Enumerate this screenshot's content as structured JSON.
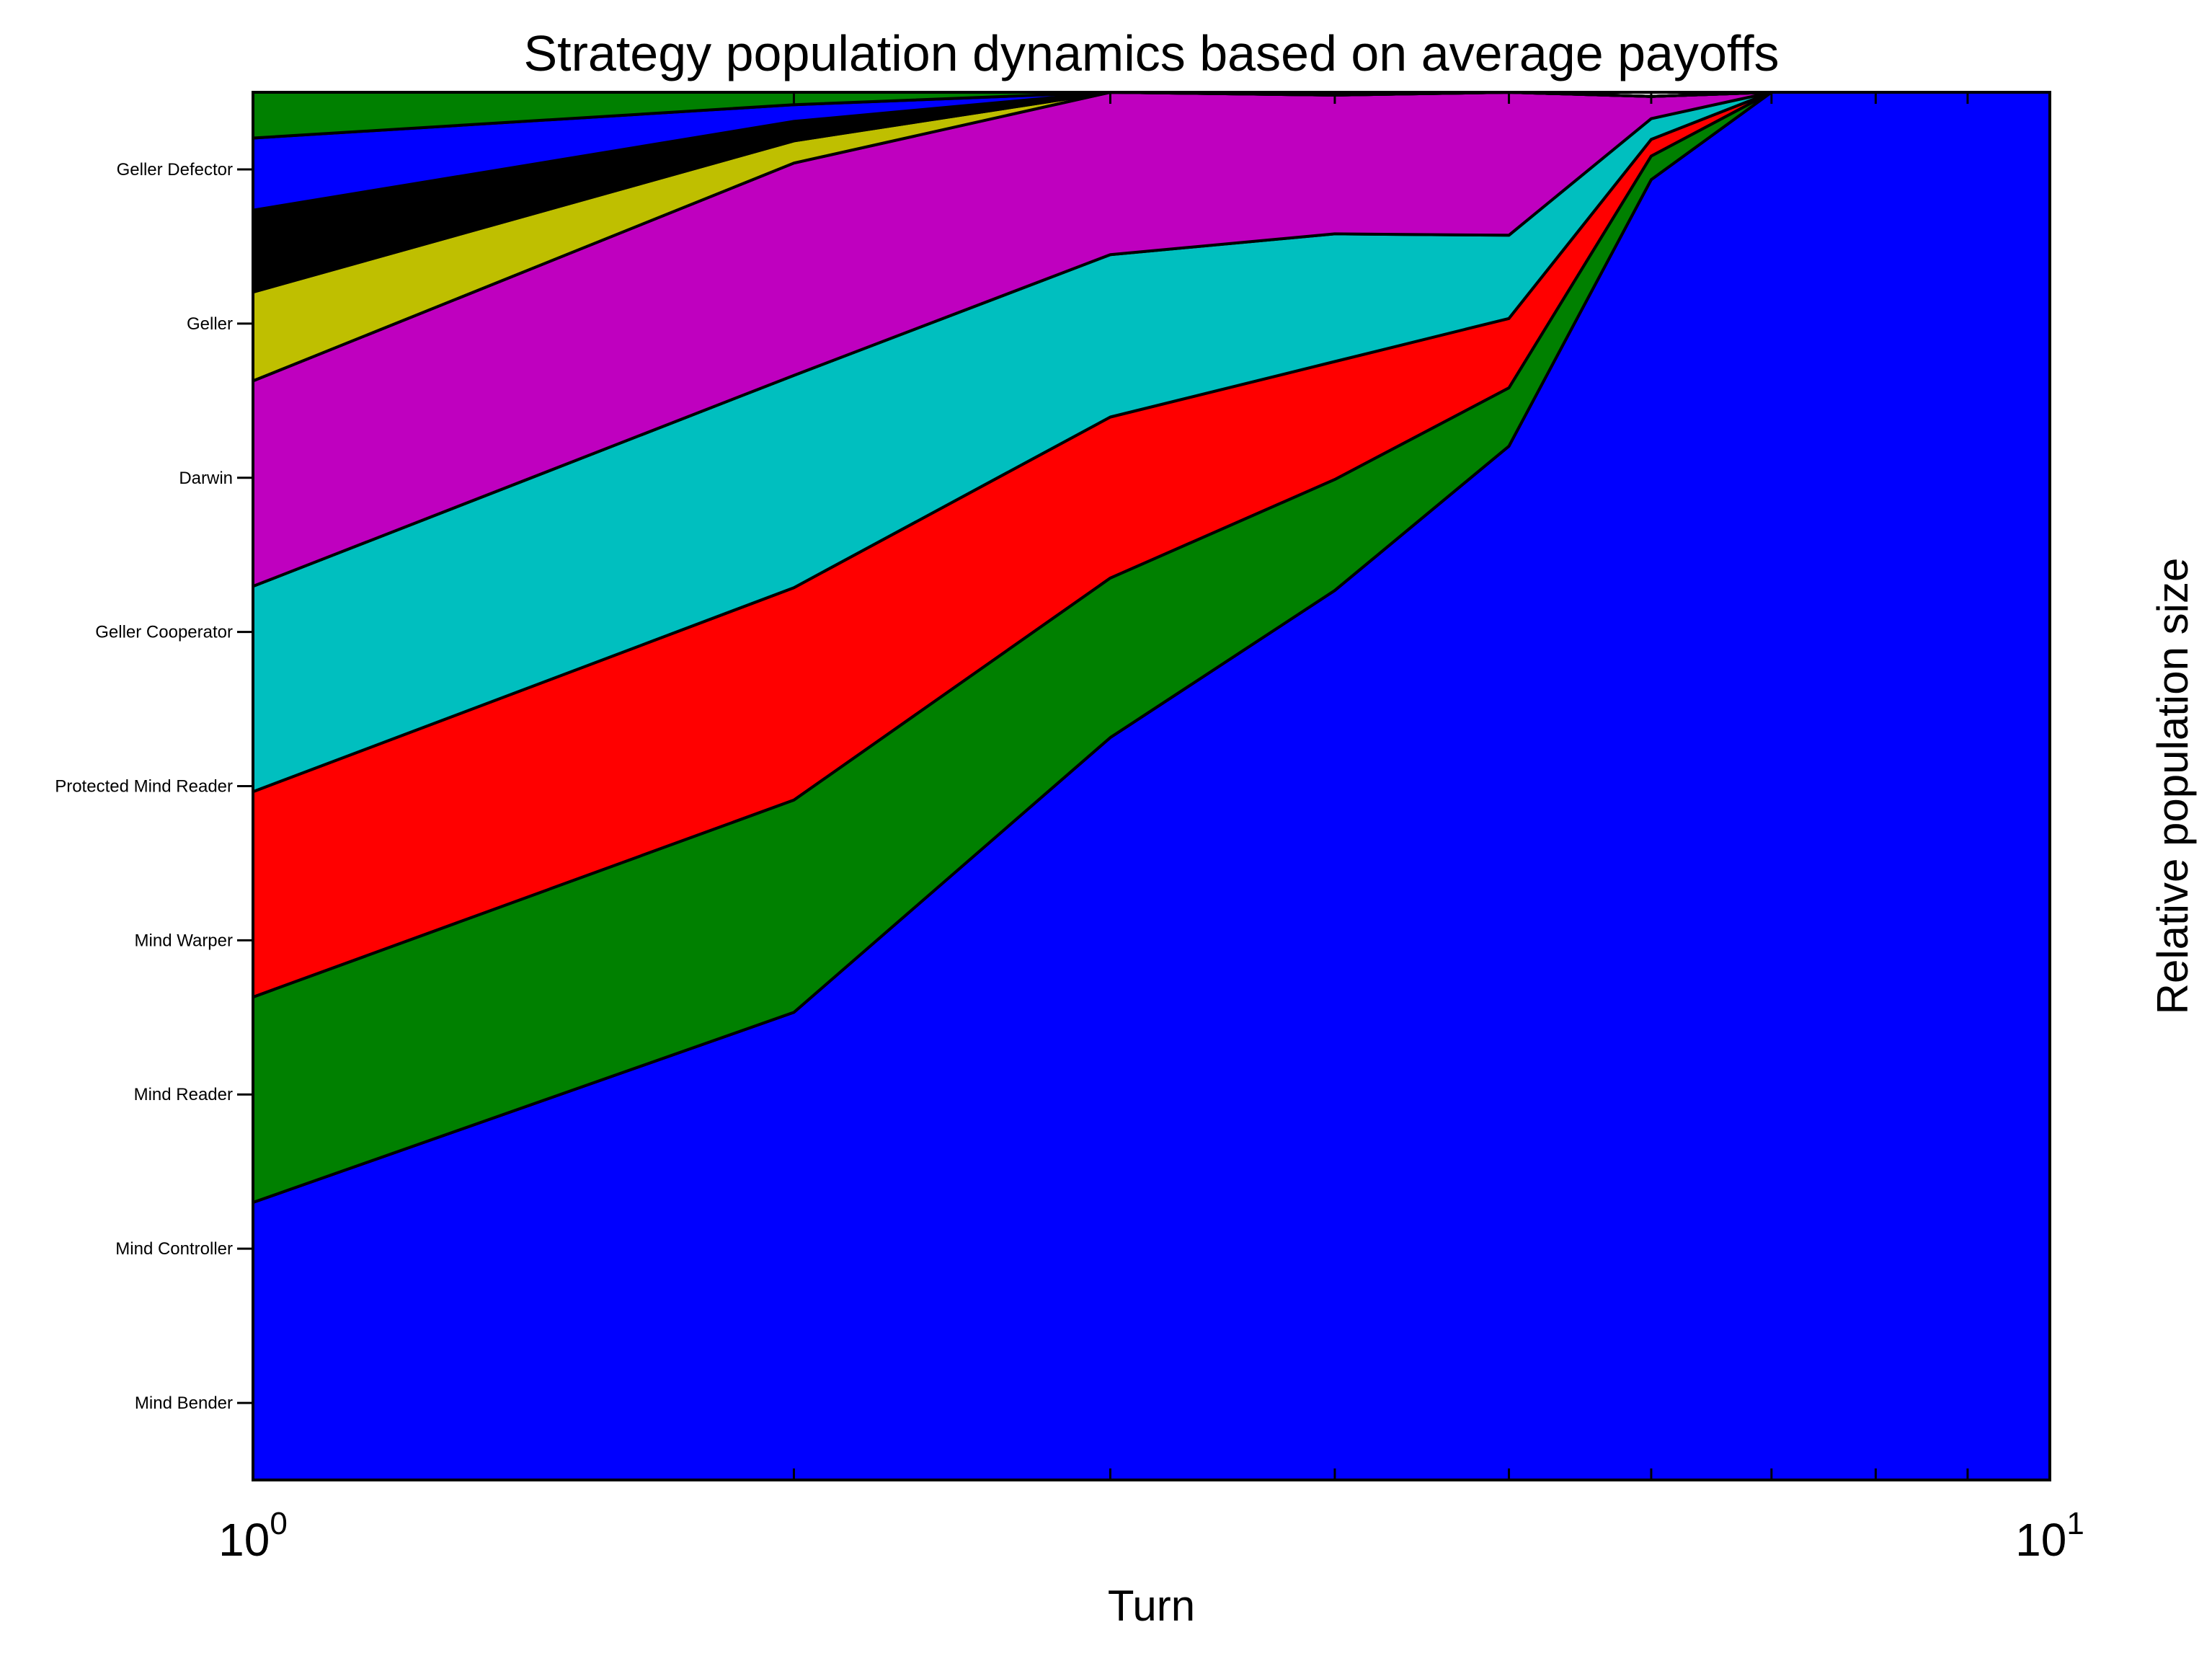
{
  "chart_data": {
    "type": "area",
    "stacked": true,
    "title": "Strategy population dynamics based on average payoffs",
    "xlabel": "Turn",
    "ylabel": "Relative population size",
    "xscale": "log",
    "xlim": [
      1,
      10
    ],
    "ylim": [
      0,
      1
    ],
    "x_tick_labels": [
      {
        "value": 1,
        "base": "10",
        "exp": "0"
      },
      {
        "value": 10,
        "base": "10",
        "exp": "1"
      }
    ],
    "x": [
      1,
      2,
      3,
      4,
      5,
      6,
      7,
      8,
      9,
      10
    ],
    "y_tick_labels": [
      {
        "value": 0.0555,
        "label": "Mind Bender"
      },
      {
        "value": 0.1667,
        "label": "Mind Controller"
      },
      {
        "value": 0.2778,
        "label": "Mind Reader"
      },
      {
        "value": 0.3889,
        "label": "Mind Warper"
      },
      {
        "value": 0.5,
        "label": "Protected Mind Reader"
      },
      {
        "value": 0.6111,
        "label": "Geller Cooperator"
      },
      {
        "value": 0.7222,
        "label": "Darwin"
      },
      {
        "value": 0.8333,
        "label": "Geller"
      },
      {
        "value": 0.9444,
        "label": "Geller Defector"
      }
    ],
    "series": [
      {
        "color": "#0000ff",
        "values": [
          0.2,
          0.337,
          0.535,
          0.641,
          0.745,
          0.937,
          1.0,
          1.0,
          1.0,
          1.0
        ]
      },
      {
        "color": "#008000",
        "values": [
          0.148,
          0.153,
          0.115,
          0.08,
          0.042,
          0.017,
          0.0,
          0.0,
          0.0,
          0.0
        ]
      },
      {
        "color": "#ff0000",
        "values": [
          0.148,
          0.153,
          0.116,
          0.085,
          0.05,
          0.012,
          0.0,
          0.0,
          0.0,
          0.0
        ]
      },
      {
        "color": "#00bfbf",
        "values": [
          0.148,
          0.153,
          0.117,
          0.092,
          0.06,
          0.015,
          0.0,
          0.0,
          0.0,
          0.0
        ]
      },
      {
        "color": "#bf00bf",
        "values": [
          0.148,
          0.153,
          0.117,
          0.1,
          0.103,
          0.016,
          0.0,
          0.0,
          0.0,
          0.0
        ]
      },
      {
        "color": "#bfbf00",
        "values": [
          0.064,
          0.016,
          0.0,
          0.0,
          0.0,
          0.0,
          0.0,
          0.0,
          0.0,
          0.0
        ]
      },
      {
        "color": "#000000",
        "values": [
          0.059,
          0.014,
          0.0,
          0.0,
          0.0,
          0.0,
          0.0,
          0.0,
          0.0,
          0.0
        ]
      },
      {
        "color": "#0000ff",
        "values": [
          0.052,
          0.012,
          0.0,
          0.0,
          0.0,
          0.0,
          0.0,
          0.0,
          0.0,
          0.0
        ]
      },
      {
        "color": "#008000",
        "values": [
          0.033,
          0.009,
          0.0,
          0.0,
          0.0,
          0.0,
          0.0,
          0.0,
          0.0,
          0.0
        ]
      }
    ]
  }
}
